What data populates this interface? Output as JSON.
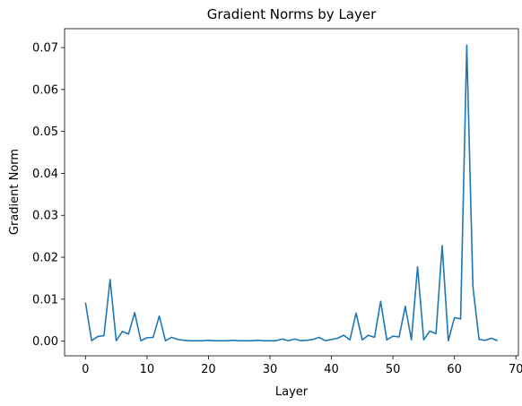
{
  "chart_data": {
    "type": "line",
    "title": "Gradient Norms by Layer",
    "xlabel": "Layer",
    "ylabel": "Gradient Norm",
    "xlim": [
      -3.4,
      70.4
    ],
    "ylim": [
      -0.0035,
      0.0745
    ],
    "xticks": [
      0,
      10,
      20,
      30,
      40,
      50,
      60,
      70
    ],
    "yticks": [
      0.0,
      0.01,
      0.02,
      0.03,
      0.04,
      0.05,
      0.06,
      0.07
    ],
    "ytick_labels": [
      "0.00",
      "0.01",
      "0.02",
      "0.03",
      "0.04",
      "0.05",
      "0.06",
      "0.07"
    ],
    "grid": false,
    "line_color": "#1f77b4",
    "series": [
      {
        "x": [
          0,
          1,
          2,
          3,
          4,
          5,
          6,
          7,
          8,
          9,
          10,
          11,
          12,
          13,
          14,
          15,
          16,
          17,
          18,
          19,
          20,
          21,
          22,
          23,
          24,
          25,
          26,
          27,
          28,
          29,
          30,
          31,
          32,
          33,
          34,
          35,
          36,
          37,
          38,
          39,
          40,
          41,
          42,
          43,
          44,
          45,
          46,
          47,
          48,
          49,
          50,
          51,
          52,
          53,
          54,
          55,
          56,
          57,
          58,
          59,
          60,
          61,
          62,
          63,
          64,
          65,
          66,
          67
        ],
        "values": [
          0.0092,
          0.0001,
          0.0011,
          0.0013,
          0.0147,
          0.0001,
          0.0023,
          0.0017,
          0.0068,
          0.0001,
          0.0008,
          0.0009,
          0.006,
          0.0001,
          0.0009,
          0.0004,
          0.0002,
          0.0001,
          0.0001,
          0.0001,
          0.0002,
          0.0001,
          0.0001,
          0.0001,
          0.0002,
          0.0001,
          0.0001,
          0.0001,
          0.0002,
          0.0001,
          0.0001,
          0.0001,
          0.0005,
          0.0001,
          0.0005,
          0.0001,
          0.0002,
          0.0004,
          0.0009,
          0.0001,
          0.0004,
          0.0007,
          0.0014,
          0.0003,
          0.0067,
          0.0003,
          0.0014,
          0.0009,
          0.0095,
          0.0003,
          0.0012,
          0.001,
          0.0083,
          0.0003,
          0.0177,
          0.0003,
          0.0024,
          0.0018,
          0.0228,
          0.0001,
          0.0056,
          0.0053,
          0.0706,
          0.013,
          0.0004,
          0.0002,
          0.0007,
          0.0001
        ]
      }
    ]
  }
}
